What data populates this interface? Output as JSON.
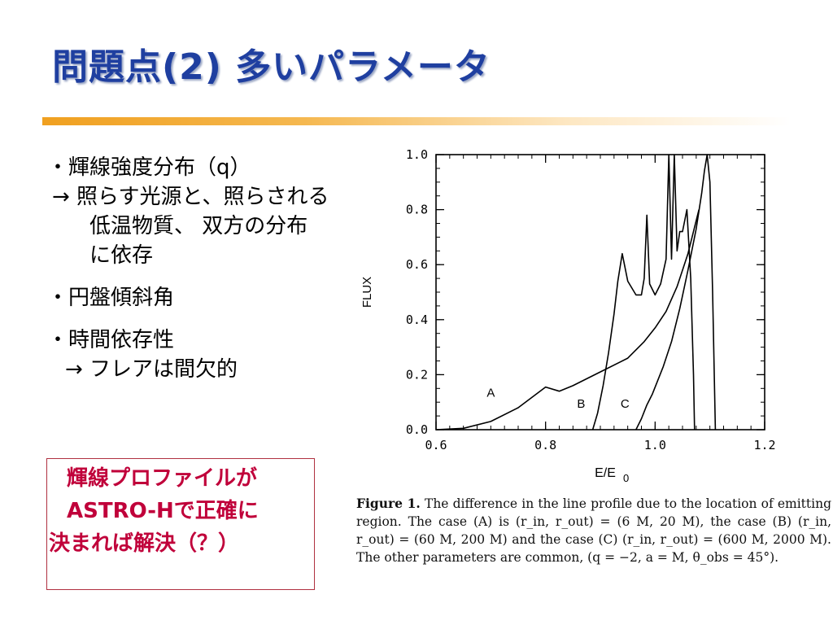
{
  "slide": {
    "title": "問題点(2) 多いパラメータ",
    "bullets": {
      "b1": "・輝線強度分布（q）",
      "b1_sub1": "→ 照らす光源と、照らされる",
      "b1_sub2": "低温物質、 双方の分布",
      "b1_sub3": "に依存",
      "b2": "・円盤傾斜角",
      "b3": "・時間依存性",
      "b3_sub1": "→ フレアは間欠的"
    },
    "callout": {
      "line1": "輝線プロファイルが",
      "line2": "ASTRO-Hで正確に",
      "line3": "決まれば解決（？）"
    },
    "accent_color": "#1f3fa0",
    "callout_color": "#c0003a"
  },
  "caption": {
    "figure_label": "Figure 1.",
    "text": "The difference in the line profile due to the location of emitting region. The case (A) is (r_in, r_out) = (6 M, 20 M), the case (B) (r_in, r_out) = (60 M, 200 M) and the case (C) (r_in, r_out) = (600 M, 2000 M). The other parameters are common, (q = −2, a = M, θ_obs = 45°)."
  },
  "chart_data": {
    "type": "line",
    "title": "",
    "xlabel": "E/E",
    "xlabel_sub": "0",
    "ylabel": "FLUX",
    "xlim": [
      0.6,
      1.2
    ],
    "ylim": [
      0.0,
      1.0
    ],
    "x_ticks": [
      "0.6",
      "0.8",
      "1.0",
      "1.2"
    ],
    "y_ticks": [
      "0.0",
      "0.2",
      "0.4",
      "0.6",
      "0.8",
      "1.0"
    ],
    "grid": false,
    "series": [
      {
        "name": "A",
        "label_at": [
          0.7,
          0.12
        ],
        "x": [
          0.6,
          0.65,
          0.7,
          0.75,
          0.8,
          0.825,
          0.85,
          0.9,
          0.95,
          0.98,
          1.0,
          1.02,
          1.04,
          1.06,
          1.08
        ],
        "y": [
          0.0,
          0.005,
          0.03,
          0.08,
          0.155,
          0.14,
          0.16,
          0.21,
          0.26,
          0.32,
          0.37,
          0.43,
          0.52,
          0.64,
          0.8
        ]
      },
      {
        "name": "B",
        "label_at": [
          0.865,
          0.08
        ],
        "x": [
          0.886,
          0.895,
          0.905,
          0.915,
          0.925,
          0.932,
          0.94,
          0.95,
          0.965,
          0.975,
          0.98,
          0.985,
          0.99,
          1.0,
          1.01,
          1.02,
          1.025,
          1.03,
          1.035,
          1.04,
          1.045,
          1.05,
          1.058,
          1.065,
          1.07,
          1.072
        ],
        "y": [
          0.0,
          0.06,
          0.16,
          0.28,
          0.42,
          0.54,
          0.64,
          0.54,
          0.49,
          0.49,
          0.55,
          0.78,
          0.53,
          0.49,
          0.53,
          0.62,
          1.0,
          0.62,
          1.0,
          0.65,
          0.72,
          0.72,
          0.8,
          0.55,
          0.2,
          0.0
        ]
      },
      {
        "name": "C",
        "label_at": [
          0.945,
          0.08
        ],
        "x": [
          0.965,
          0.975,
          0.985,
          0.995,
          1.005,
          1.015,
          1.03,
          1.045,
          1.06,
          1.075,
          1.085,
          1.09,
          1.095,
          1.1,
          1.105,
          1.11
        ],
        "y": [
          0.0,
          0.04,
          0.09,
          0.13,
          0.18,
          0.23,
          0.32,
          0.44,
          0.58,
          0.73,
          0.86,
          0.94,
          1.0,
          0.9,
          0.5,
          0.0
        ]
      }
    ]
  }
}
